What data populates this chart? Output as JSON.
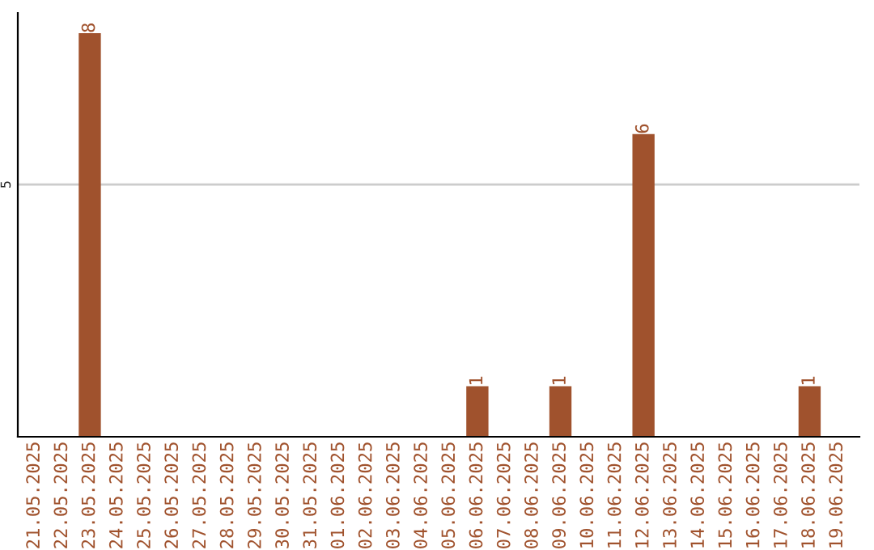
{
  "chart_data": {
    "type": "bar",
    "categories": [
      "21.05.2025",
      "22.05.2025",
      "23.05.2025",
      "24.05.2025",
      "25.05.2025",
      "26.05.2025",
      "27.05.2025",
      "28.05.2025",
      "29.05.2025",
      "30.05.2025",
      "31.05.2025",
      "01.06.2025",
      "02.06.2025",
      "03.06.2025",
      "04.06.2025",
      "05.06.2025",
      "06.06.2025",
      "07.06.2025",
      "08.06.2025",
      "09.06.2025",
      "10.06.2025",
      "11.06.2025",
      "12.06.2025",
      "13.06.2025",
      "14.06.2025",
      "15.06.2025",
      "16.06.2025",
      "17.06.2025",
      "18.06.2025",
      "19.06.2025"
    ],
    "values": [
      0,
      0,
      8,
      0,
      0,
      0,
      0,
      0,
      0,
      0,
      0,
      0,
      0,
      0,
      0,
      0,
      1,
      0,
      0,
      1,
      0,
      0,
      6,
      0,
      0,
      0,
      0,
      0,
      1,
      0
    ],
    "value_labels": [
      null,
      null,
      "8",
      null,
      null,
      null,
      null,
      null,
      null,
      null,
      null,
      null,
      null,
      null,
      null,
      null,
      "1",
      null,
      null,
      "1",
      null,
      null,
      "6",
      null,
      null,
      null,
      null,
      null,
      "1",
      null
    ],
    "color": "#a0522d",
    "ylim": [
      0,
      8.4
    ],
    "yticks": [
      5
    ],
    "grid": "y"
  }
}
